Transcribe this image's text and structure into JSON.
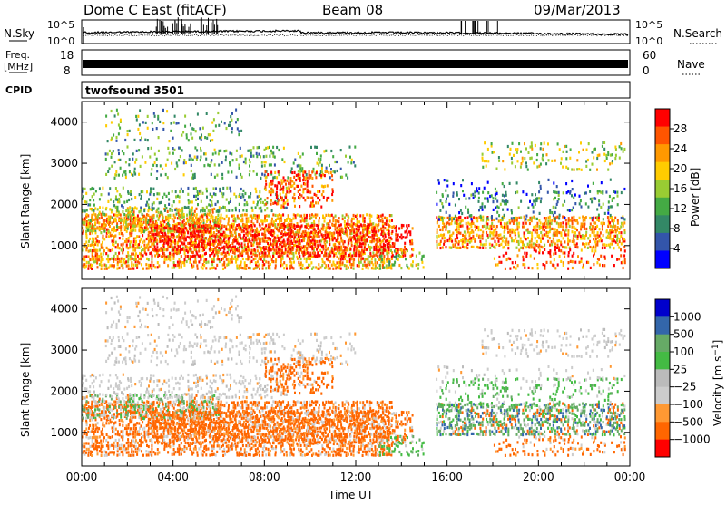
{
  "header": {
    "station": "Dome C East (fitACF)",
    "beam": "Beam 08",
    "date": "09/Mar/2013"
  },
  "noise_panel": {
    "left_label": "N.Sky",
    "right_label": "N.Search",
    "left_ticks": [
      "10^5",
      "10^0"
    ],
    "right_ticks": [
      "10^5",
      "10^0"
    ]
  },
  "freq_panel": {
    "left_label_1": "Freq.",
    "left_label_2": "[MHz]",
    "left_ticks": [
      "18",
      "8"
    ],
    "right_label": "Nave",
    "right_ticks": [
      "60",
      "0"
    ]
  },
  "cpid_panel": {
    "label": "CPID",
    "value": "twofsound 3501"
  },
  "colors": {
    "power": [
      "#0000ff",
      "#3355aa",
      "#338866",
      "#44aa44",
      "#99cc33",
      "#ffcc00",
      "#ff9900",
      "#ff5500",
      "#ff0000"
    ],
    "velocity": [
      "#ff0000",
      "#ff6600",
      "#ff9933",
      "#cccccc",
      "#bbbbbb",
      "#44bb44",
      "#66aa66",
      "#3366aa",
      "#0000cc"
    ]
  },
  "chart_data": [
    {
      "type": "heatmap",
      "name": "power",
      "xlabel": "",
      "ylabel": "Slant Range [km]",
      "x_ticks": [
        "00:00",
        "04:00",
        "08:00",
        "12:00",
        "16:00",
        "20:00",
        "00:00"
      ],
      "y_ticks": [
        1000,
        2000,
        3000,
        4000
      ],
      "xlim_hours": [
        0,
        24
      ],
      "ylim_km": [
        180,
        4500
      ],
      "colorbar_label": "Power [dB]",
      "colorbar_ticks": [
        4,
        8,
        12,
        16,
        20,
        24,
        28
      ],
      "colorbar_range": [
        0,
        32
      ]
    },
    {
      "type": "heatmap",
      "name": "velocity",
      "xlabel": "Time UT",
      "ylabel": "Slant Range [km]",
      "x_ticks": [
        "00:00",
        "04:00",
        "08:00",
        "12:00",
        "16:00",
        "20:00",
        "00:00"
      ],
      "y_ticks": [
        1000,
        2000,
        3000,
        4000
      ],
      "xlim_hours": [
        0,
        24
      ],
      "ylim_km": [
        180,
        4500
      ],
      "colorbar_label": "Velocity [m s-1]",
      "colorbar_ticks": [
        "1000",
        "500",
        "100",
        "25",
        "−25",
        "−100",
        "−500",
        "−1000"
      ]
    }
  ]
}
